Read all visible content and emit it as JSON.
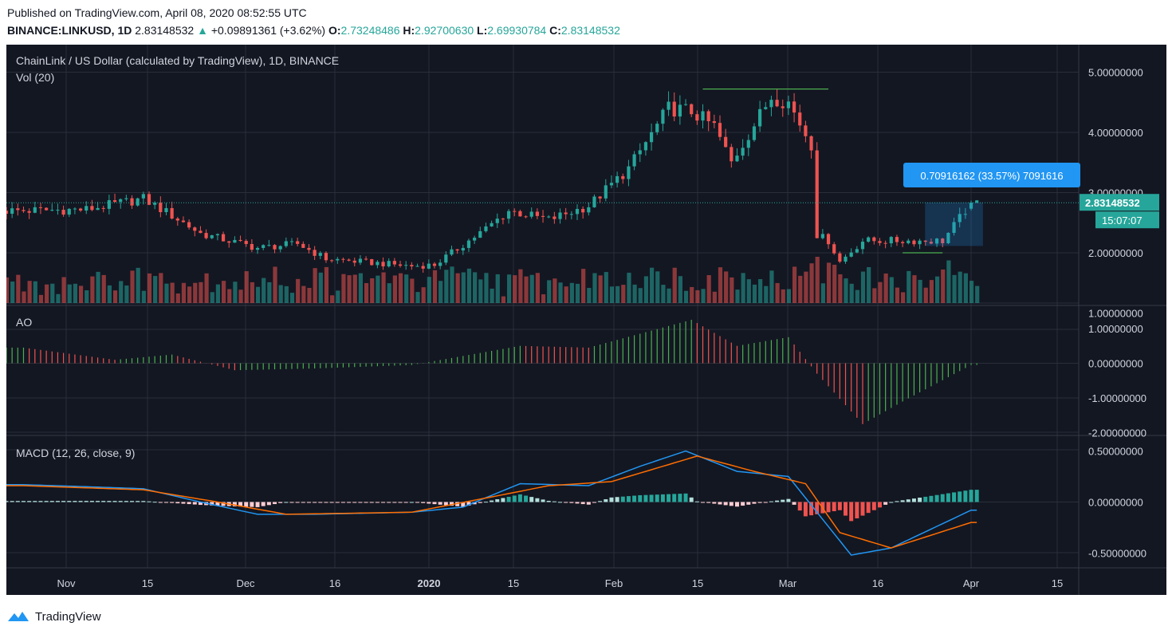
{
  "header": {
    "published": "Published on TradingView.com, April 08, 2020 08:52:55 UTC",
    "symbol": "BINANCE:LINKUSD, 1D",
    "last": "2.83148532",
    "change": "+0.09891361 (+3.62%)",
    "o_label": "O:",
    "o_value": "2.73248486",
    "h_label": "H:",
    "h_value": "2.92700630",
    "l_label": "L:",
    "l_value": "2.69930784",
    "c_label": "C:",
    "c_value": "2.83148532"
  },
  "main_pane": {
    "title": "ChainLink / US Dollar (calculated by TradingView), 1D, BINANCE",
    "volume_label": "Vol (20)",
    "price_badge": "2.83148532",
    "countdown_badge": "15:07:07",
    "measure_label": "0.70916162 (33.57%) 7091616",
    "price_ticks": [
      "5.00000000",
      "4.00000000",
      "3.00000000",
      "2.00000000",
      "1.00000000"
    ]
  },
  "ao_pane": {
    "label": "AO",
    "ticks": [
      "1.00000000",
      "0.00000000",
      "-1.00000000",
      "-2.00000000"
    ]
  },
  "macd_pane": {
    "label": "MACD (12, 26, close, 9)",
    "ticks": [
      "0.50000000",
      "0.00000000",
      "-0.50000000"
    ]
  },
  "time_axis": {
    "labels": [
      "Nov",
      "15",
      "Dec",
      "16",
      "2020",
      "15",
      "Feb",
      "15",
      "Mar",
      "16",
      "Apr",
      "15"
    ]
  },
  "footer": {
    "brand": "TradingView"
  },
  "colors": {
    "background": "#131722",
    "grid": "#2a2e39",
    "up": "#26a69a",
    "down": "#ef5350",
    "macd_line": "#2196f3",
    "signal_line": "#ff6d00",
    "badge": "#26a69a",
    "measure": "#2196f3",
    "level_line": "#4caf50"
  },
  "chart_data": {
    "type": "candlestick",
    "title": "ChainLink / US Dollar (calculated by TradingView), 1D, BINANCE",
    "ohlc_anchors_date_close": [
      [
        "2019-10-25",
        2.7
      ],
      [
        "2019-11-05",
        2.72
      ],
      [
        "2019-11-15",
        2.9
      ],
      [
        "2019-11-20",
        2.62
      ],
      [
        "2019-11-25",
        2.32
      ],
      [
        "2019-12-05",
        2.08
      ],
      [
        "2019-12-12",
        2.15
      ],
      [
        "2019-12-17",
        1.9
      ],
      [
        "2020-01-01",
        1.78
      ],
      [
        "2020-01-05",
        1.8
      ],
      [
        "2020-01-14",
        2.4
      ],
      [
        "2020-01-18",
        2.7
      ],
      [
        "2020-01-25",
        2.55
      ],
      [
        "2020-02-01",
        2.78
      ],
      [
        "2020-02-08",
        3.4
      ],
      [
        "2020-02-15",
        4.4
      ],
      [
        "2020-02-19",
        4.35
      ],
      [
        "2020-02-23",
        4.1
      ],
      [
        "2020-02-26",
        3.5
      ],
      [
        "2020-03-04",
        4.6
      ],
      [
        "2020-03-07",
        4.5
      ],
      [
        "2020-03-11",
        3.8
      ],
      [
        "2020-03-12",
        2.3
      ],
      [
        "2020-03-14",
        2.2
      ],
      [
        "2020-03-16",
        1.85
      ],
      [
        "2020-03-20",
        2.2
      ],
      [
        "2020-03-27",
        2.2
      ],
      [
        "2020-04-03",
        2.2
      ],
      [
        "2020-04-08",
        2.83
      ]
    ],
    "last_candle": {
      "date": "2020-04-08",
      "open": 2.73248486,
      "high": 2.9270063,
      "low": 2.69930784,
      "close": 2.83148532
    },
    "levels": [
      {
        "price": 4.72,
        "from": "2020-02-21",
        "to": "2020-03-14"
      },
      {
        "price": 2.0,
        "from": "2020-03-27",
        "to": "2020-04-03"
      }
    ],
    "measure": {
      "from": "2020-03-31",
      "to": "2020-04-10",
      "low": 2.12,
      "high": 2.83,
      "label": "0.70916162 (33.57%) 7091616"
    },
    "volume_label": "Vol (20)",
    "ao": {
      "label": "AO",
      "range": [
        -2,
        1.3
      ],
      "anchors": [
        [
          "2019-10-25",
          0.45
        ],
        [
          "2019-11-10",
          0.1
        ],
        [
          "2019-11-20",
          0.25
        ],
        [
          "2019-12-01",
          -0.2
        ],
        [
          "2019-12-15",
          -0.15
        ],
        [
          "2020-01-01",
          -0.05
        ],
        [
          "2020-01-20",
          0.5
        ],
        [
          "2020-02-01",
          0.45
        ],
        [
          "2020-02-19",
          1.25
        ],
        [
          "2020-02-27",
          0.5
        ],
        [
          "2020-03-07",
          0.75
        ],
        [
          "2020-03-12",
          -0.3
        ],
        [
          "2020-03-20",
          -1.75
        ],
        [
          "2020-03-27",
          -1.1
        ],
        [
          "2020-04-08",
          -0.05
        ]
      ]
    },
    "macd": {
      "label": "MACD (12, 26, close, 9)",
      "range": [
        -0.6,
        0.6
      ],
      "macd_anchors": [
        [
          "2019-10-25",
          0.17
        ],
        [
          "2019-11-05",
          0.15
        ],
        [
          "2019-11-15",
          0.13
        ],
        [
          "2019-11-25",
          0.0
        ],
        [
          "2019-12-05",
          -0.12
        ],
        [
          "2019-12-15",
          -0.12
        ],
        [
          "2020-01-01",
          -0.1
        ],
        [
          "2020-01-10",
          -0.05
        ],
        [
          "2020-01-20",
          0.18
        ],
        [
          "2020-02-01",
          0.16
        ],
        [
          "2020-02-10",
          0.35
        ],
        [
          "2020-02-18",
          0.5
        ],
        [
          "2020-02-27",
          0.3
        ],
        [
          "2020-03-07",
          0.25
        ],
        [
          "2020-03-12",
          -0.1
        ],
        [
          "2020-03-18",
          -0.52
        ],
        [
          "2020-03-25",
          -0.45
        ],
        [
          "2020-04-08",
          -0.08
        ]
      ],
      "signal_anchors": [
        [
          "2019-10-25",
          0.16
        ],
        [
          "2019-11-15",
          0.12
        ],
        [
          "2019-11-28",
          0.0
        ],
        [
          "2019-12-10",
          -0.12
        ],
        [
          "2020-01-01",
          -0.1
        ],
        [
          "2020-01-15",
          0.05
        ],
        [
          "2020-01-25",
          0.16
        ],
        [
          "2020-02-05",
          0.2
        ],
        [
          "2020-02-20",
          0.45
        ],
        [
          "2020-03-01",
          0.3
        ],
        [
          "2020-03-10",
          0.18
        ],
        [
          "2020-03-16",
          -0.3
        ],
        [
          "2020-03-25",
          -0.45
        ],
        [
          "2020-04-08",
          -0.2
        ]
      ]
    },
    "time_axis_labels": [
      "Nov",
      "15",
      "Dec",
      "16",
      "2020",
      "15",
      "Feb",
      "15",
      "Mar",
      "16",
      "Apr",
      "15"
    ]
  }
}
